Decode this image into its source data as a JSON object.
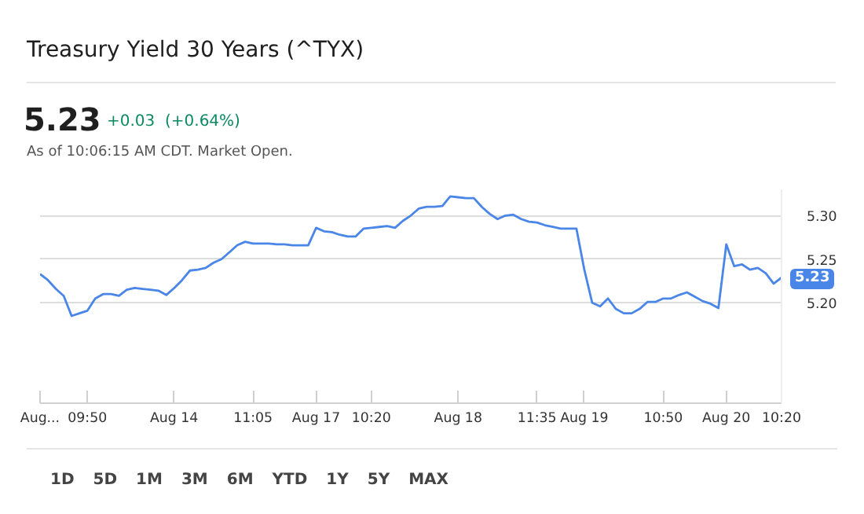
{
  "chart_data": {
    "type": "line",
    "title": "Treasury Yield 30 Years (^TYX)",
    "categories": [
      "Aug...",
      null,
      null,
      null,
      null,
      null,
      "09:50",
      null,
      null,
      null,
      null,
      null,
      null,
      null,
      null,
      null,
      null,
      "Aug 14",
      null,
      null,
      null,
      null,
      null,
      null,
      null,
      null,
      null,
      "11:05",
      null,
      null,
      null,
      null,
      null,
      null,
      null,
      "Aug 17",
      null,
      null,
      null,
      null,
      null,
      null,
      "10:20",
      null,
      null,
      null,
      null,
      null,
      null,
      null,
      null,
      null,
      null,
      "Aug 18",
      null,
      null,
      null,
      null,
      null,
      null,
      null,
      null,
      null,
      "11:35",
      null,
      null,
      null,
      null,
      null,
      "Aug 19",
      null,
      null,
      null,
      null,
      null,
      null,
      null,
      null,
      null,
      "10:50",
      null,
      null,
      null,
      null,
      null,
      null,
      null,
      "Aug 20",
      null,
      null,
      null,
      null,
      null,
      null,
      "10:20"
    ],
    "series": [
      {
        "color": "#4a86e8",
        "values": [
          5.233,
          5.226,
          5.216,
          5.208,
          5.185,
          5.188,
          5.191,
          5.205,
          5.21,
          5.21,
          5.208,
          5.215,
          5.217,
          5.216,
          5.215,
          5.214,
          5.209,
          5.217,
          5.226,
          5.237,
          5.238,
          5.24,
          5.246,
          5.25,
          5.258,
          5.266,
          5.27,
          5.268,
          5.268,
          5.268,
          5.267,
          5.267,
          5.266,
          5.266,
          5.266,
          5.286,
          5.282,
          5.281,
          5.278,
          5.276,
          5.276,
          5.285,
          5.286,
          5.287,
          5.288,
          5.286,
          5.294,
          5.3,
          5.308,
          5.31,
          5.31,
          5.311,
          5.322,
          5.321,
          5.32,
          5.32,
          5.31,
          5.302,
          5.296,
          5.3,
          5.301,
          5.296,
          5.293,
          5.292,
          5.289,
          5.287,
          5.285,
          5.285,
          5.285,
          5.238,
          5.2,
          5.196,
          5.205,
          5.193,
          5.188,
          5.188,
          5.193,
          5.201,
          5.201,
          5.205,
          5.205,
          5.209,
          5.212,
          5.207,
          5.202,
          5.199,
          5.194,
          5.267,
          5.242,
          5.244,
          5.238,
          5.24,
          5.234,
          5.222,
          5.229
        ]
      }
    ],
    "ylim": [
      5.085,
      5.33
    ],
    "yticks": [
      {
        "value": 5.2,
        "label": "5.20"
      },
      {
        "value": 5.25,
        "label": "5.25"
      },
      {
        "value": 5.3,
        "label": "5.30"
      }
    ],
    "grid": "y",
    "marker": "none",
    "line_style": "solid",
    "annotations": [
      "5.23",
      "+0.03  (+0.64%)",
      "As of 10:06:15 AM CDT. Market Open.",
      "5.23",
      "1D",
      "5D",
      "1M",
      "3M",
      "6M",
      "YTD",
      "1Y",
      "5Y",
      "MAX"
    ]
  }
}
